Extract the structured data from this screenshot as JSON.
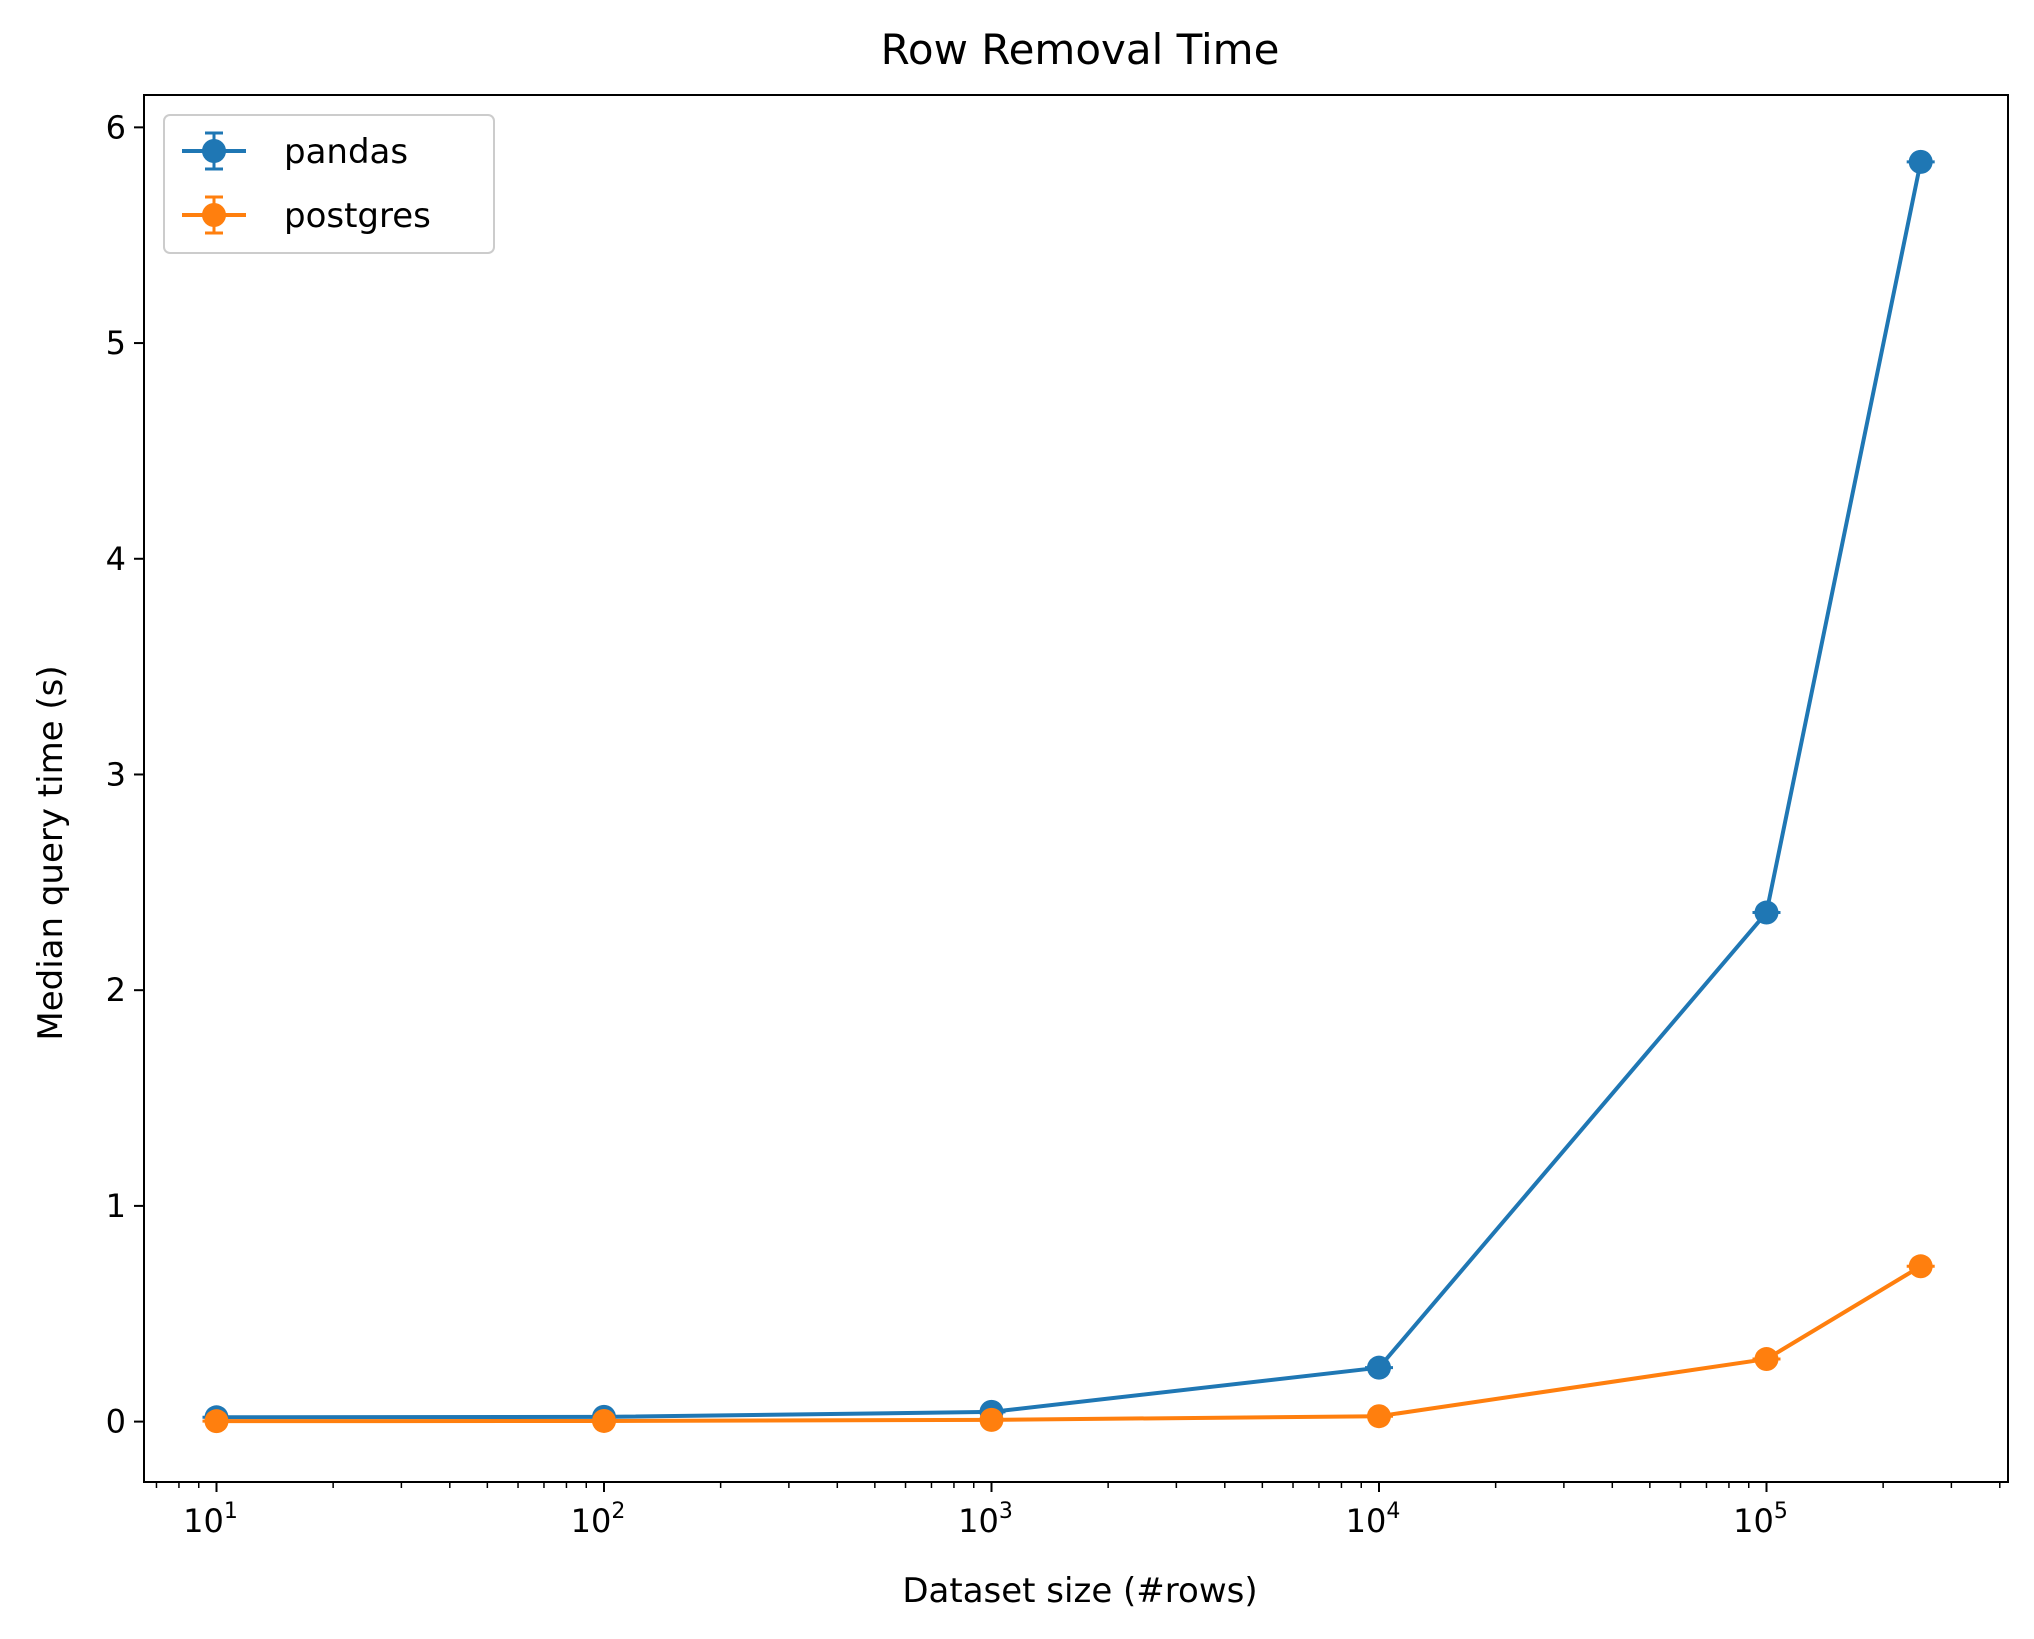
{
  "chart_data": {
    "type": "line",
    "title": "Row Removal Time",
    "xlabel": "Dataset size (#rows)",
    "ylabel": "Median query time (s)",
    "xscale": "log",
    "xlim": [
      6.5,
      420000
    ],
    "ylim": [
      -0.28,
      6.15
    ],
    "x_ticks": [
      {
        "base": "10",
        "exp": "1",
        "value": 10
      },
      {
        "base": "10",
        "exp": "2",
        "value": 100
      },
      {
        "base": "10",
        "exp": "3",
        "value": 1000
      },
      {
        "base": "10",
        "exp": "4",
        "value": 10000
      },
      {
        "base": "10",
        "exp": "5",
        "value": 100000
      }
    ],
    "y_ticks": [
      {
        "label": "0",
        "value": 0
      },
      {
        "label": "1",
        "value": 1
      },
      {
        "label": "2",
        "value": 2
      },
      {
        "label": "3",
        "value": 3
      },
      {
        "label": "4",
        "value": 4
      },
      {
        "label": "5",
        "value": 5
      },
      {
        "label": "6",
        "value": 6
      }
    ],
    "x": [
      10,
      100,
      1000,
      10000,
      100000,
      250000
    ],
    "series": [
      {
        "name": "pandas",
        "color": "#1f77b4",
        "values": [
          0.02,
          0.022,
          0.045,
          0.25,
          2.36,
          5.84
        ]
      },
      {
        "name": "postgres",
        "color": "#ff7f0e",
        "values": [
          0.002,
          0.003,
          0.008,
          0.025,
          0.29,
          0.72
        ]
      }
    ],
    "error_bars": true,
    "grid": false,
    "legend_position": "top-left"
  }
}
